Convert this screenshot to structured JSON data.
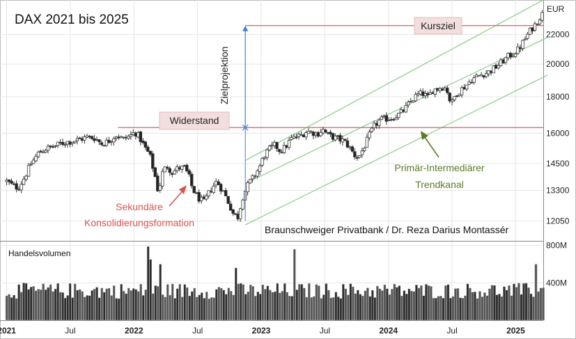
{
  "chart_data": {
    "type": "candlestick",
    "title": "DAX 2021 bis 2025",
    "unit": "EUR",
    "x_tick_labels": [
      "2021",
      "Jul",
      "2022",
      "Jul",
      "2023",
      "Jul",
      "2024",
      "Jul",
      "2025"
    ],
    "x_ticks_months": [
      0,
      6,
      12,
      18,
      24,
      30,
      36,
      42,
      48
    ],
    "x_range_months": [
      -0.5,
      50.6
    ],
    "y_tick_labels": [
      "22000",
      "20000",
      "18000",
      "16000",
      "14500",
      "13300",
      "12050"
    ],
    "y_ticks": [
      22000,
      20000,
      18000,
      16000,
      14500,
      13300,
      12050
    ],
    "y_scale": "log",
    "y_range": [
      11300,
      24600
    ],
    "price_path": [
      [
        0.0,
        13700
      ],
      [
        0.6,
        13500
      ],
      [
        1.1,
        13400
      ],
      [
        1.7,
        13900
      ],
      [
        2.3,
        14500
      ],
      [
        3.0,
        15000
      ],
      [
        3.6,
        15200
      ],
      [
        4.3,
        15300
      ],
      [
        5.0,
        15450
      ],
      [
        5.6,
        15550
      ],
      [
        6.3,
        15600
      ],
      [
        7.0,
        15700
      ],
      [
        7.6,
        15800
      ],
      [
        8.3,
        15750
      ],
      [
        9.0,
        15450
      ],
      [
        9.6,
        15600
      ],
      [
        10.3,
        15900
      ],
      [
        11.0,
        15700
      ],
      [
        11.6,
        15850
      ],
      [
        12.1,
        16050
      ],
      [
        12.5,
        15800
      ],
      [
        13.0,
        15300
      ],
      [
        13.5,
        14900
      ],
      [
        14.0,
        13900
      ],
      [
        14.3,
        13200
      ],
      [
        14.7,
        14100
      ],
      [
        15.1,
        14400
      ],
      [
        15.6,
        14100
      ],
      [
        16.2,
        14300
      ],
      [
        16.8,
        14300
      ],
      [
        17.2,
        13900
      ],
      [
        17.5,
        13400
      ],
      [
        18.0,
        13000
      ],
      [
        18.6,
        12800
      ],
      [
        19.2,
        13300
      ],
      [
        19.8,
        13700
      ],
      [
        20.5,
        13200
      ],
      [
        21.0,
        12700
      ],
      [
        21.4,
        12300
      ],
      [
        21.8,
        12200
      ],
      [
        22.3,
        13100
      ],
      [
        22.8,
        13600
      ],
      [
        23.3,
        13900
      ],
      [
        23.8,
        14300
      ],
      [
        24.3,
        14900
      ],
      [
        24.8,
        15200
      ],
      [
        25.3,
        15400
      ],
      [
        25.8,
        15100
      ],
      [
        26.3,
        15300
      ],
      [
        26.8,
        15700
      ],
      [
        27.3,
        15800
      ],
      [
        27.8,
        15900
      ],
      [
        28.3,
        16100
      ],
      [
        28.8,
        16050
      ],
      [
        29.3,
        15950
      ],
      [
        29.8,
        16200
      ],
      [
        30.3,
        15900
      ],
      [
        30.8,
        15800
      ],
      [
        31.3,
        15700
      ],
      [
        31.8,
        15600
      ],
      [
        32.3,
        15300
      ],
      [
        32.8,
        14900
      ],
      [
        33.2,
        14800
      ],
      [
        33.7,
        15300
      ],
      [
        34.2,
        15900
      ],
      [
        34.7,
        16400
      ],
      [
        35.2,
        16700
      ],
      [
        35.7,
        16750
      ],
      [
        36.2,
        16800
      ],
      [
        36.7,
        16900
      ],
      [
        37.2,
        17100
      ],
      [
        37.7,
        17400
      ],
      [
        38.2,
        17800
      ],
      [
        38.7,
        18100
      ],
      [
        39.2,
        18200
      ],
      [
        39.7,
        17950
      ],
      [
        40.2,
        18400
      ],
      [
        40.7,
        18500
      ],
      [
        41.2,
        18600
      ],
      [
        41.6,
        18300
      ],
      [
        41.9,
        17500
      ],
      [
        42.3,
        18100
      ],
      [
        42.8,
        18400
      ],
      [
        43.3,
        18650
      ],
      [
        43.8,
        19000
      ],
      [
        44.3,
        19200
      ],
      [
        44.8,
        19350
      ],
      [
        45.3,
        19450
      ],
      [
        45.8,
        19650
      ],
      [
        46.3,
        19900
      ],
      [
        46.8,
        20200
      ],
      [
        47.3,
        20500
      ],
      [
        47.8,
        20700
      ],
      [
        48.3,
        21000
      ],
      [
        48.8,
        21600
      ],
      [
        49.3,
        22200
      ],
      [
        49.8,
        22700
      ],
      [
        50.2,
        23200
      ],
      [
        50.5,
        23500
      ]
    ],
    "lines": {
      "widerstand_eur": 16290,
      "kursziel_eur": 22650,
      "zielprojektion": {
        "month": 22.5,
        "from_eur": 16290,
        "to_eur": 22650
      }
    },
    "trend_channel": {
      "line_color": "#8ed08e",
      "lines": [
        {
          "from": [
            22.5,
            14650
          ],
          "to": [
            50.6,
            24600
          ]
        },
        {
          "from": [
            22.5,
            13600
          ],
          "to": [
            51.0,
            21800
          ]
        },
        {
          "from": [
            22.5,
            11900
          ],
          "to": [
            51.0,
            19300
          ]
        }
      ]
    },
    "volume": {
      "label": "Handelsvolumen",
      "y_tick_labels": [
        "800M",
        "400M"
      ],
      "y_ticks": [
        800,
        400
      ],
      "y_max": 820,
      "unit": "M",
      "peaks": [
        [
          13.3,
          790
        ],
        [
          13.5,
          650
        ],
        [
          27.2,
          760
        ],
        [
          50.0,
          600
        ],
        [
          14.5,
          600
        ],
        [
          21.7,
          560
        ]
      ]
    },
    "annotations": {
      "widerstand": "Widerstand",
      "kursziel": "Kursziel",
      "zielprojektion": "Zielprojektion",
      "sekundaer_line1": "Sekundäre",
      "sekundaer_line2": "Konsolidierungsformation",
      "trendkanal_line1": "Primär-Intermediärer",
      "trendkanal_line2": "Trendkanal",
      "credit": "Braunschweiger Privatbank / Dr. Reza Darius Montassér"
    },
    "colors": {
      "candle": "#333333",
      "candle_up_fill": "#ffffff",
      "candle_down_fill": "#222222",
      "resistance_line": "#e06a6a",
      "resistance_box": "#f2dede",
      "projection_arrow": "#3b7ddd",
      "trend_channel": "#8ed08e",
      "annotation_red": "#d9534f",
      "annotation_green": "#5a7a2a",
      "volume_bar": "#555555",
      "volume_highlight": "#2d2d2d",
      "volume_edge": "#bbbbbb"
    }
  }
}
